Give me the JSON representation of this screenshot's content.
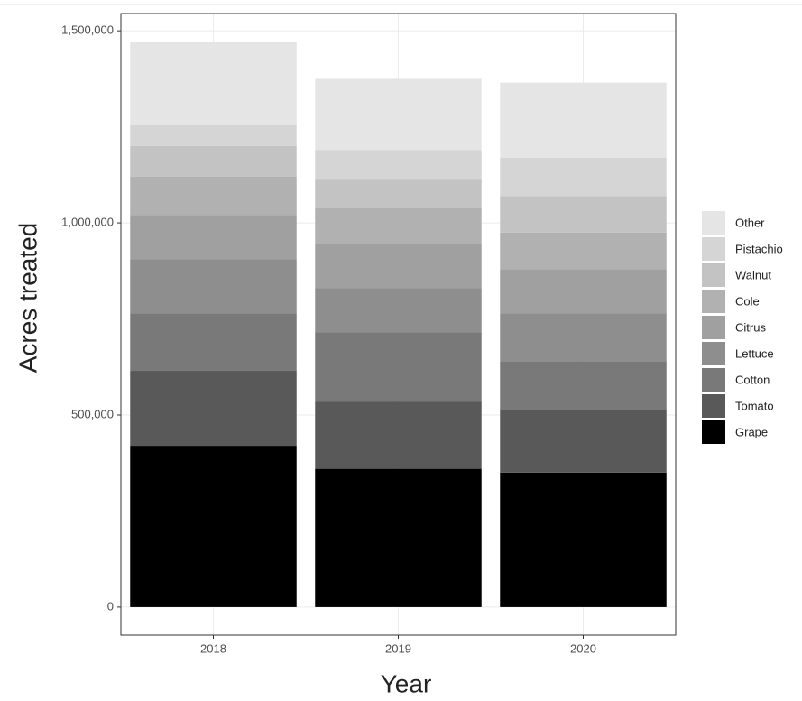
{
  "chart_data": {
    "type": "stacked_bar",
    "x_label": "Year",
    "y_label": "Acres treated",
    "categories": [
      "2018",
      "2019",
      "2020"
    ],
    "series": [
      {
        "name": "Grape",
        "color": "#000000",
        "values": [
          420000,
          360000,
          350000
        ]
      },
      {
        "name": "Tomato",
        "color": "#595959",
        "values": [
          195000,
          175000,
          165000
        ]
      },
      {
        "name": "Cotton",
        "color": "#797979",
        "values": [
          150000,
          180000,
          125000
        ]
      },
      {
        "name": "Lettuce",
        "color": "#8e8e8e",
        "values": [
          140000,
          115000,
          125000
        ]
      },
      {
        "name": "Citrus",
        "color": "#a0a0a0",
        "values": [
          115000,
          115000,
          115000
        ]
      },
      {
        "name": "Cole",
        "color": "#b1b1b1",
        "values": [
          100000,
          95000,
          95000
        ]
      },
      {
        "name": "Walnut",
        "color": "#c3c3c3",
        "values": [
          80000,
          75000,
          95000
        ]
      },
      {
        "name": "Pistachio",
        "color": "#d5d5d5",
        "values": [
          55000,
          75000,
          100000
        ]
      },
      {
        "name": "Other",
        "color": "#e5e5e5",
        "values": [
          215000,
          185000,
          195000
        ]
      }
    ],
    "ylim": [
      -73000,
      1545000
    ],
    "yticks": [
      0,
      {
        "value": 500000,
        "label": "500,000"
      },
      {
        "value": 1000000,
        "label": "1,000,000"
      },
      {
        "value": 1500000,
        "label": "1,500,000"
      }
    ],
    "grid": true
  }
}
